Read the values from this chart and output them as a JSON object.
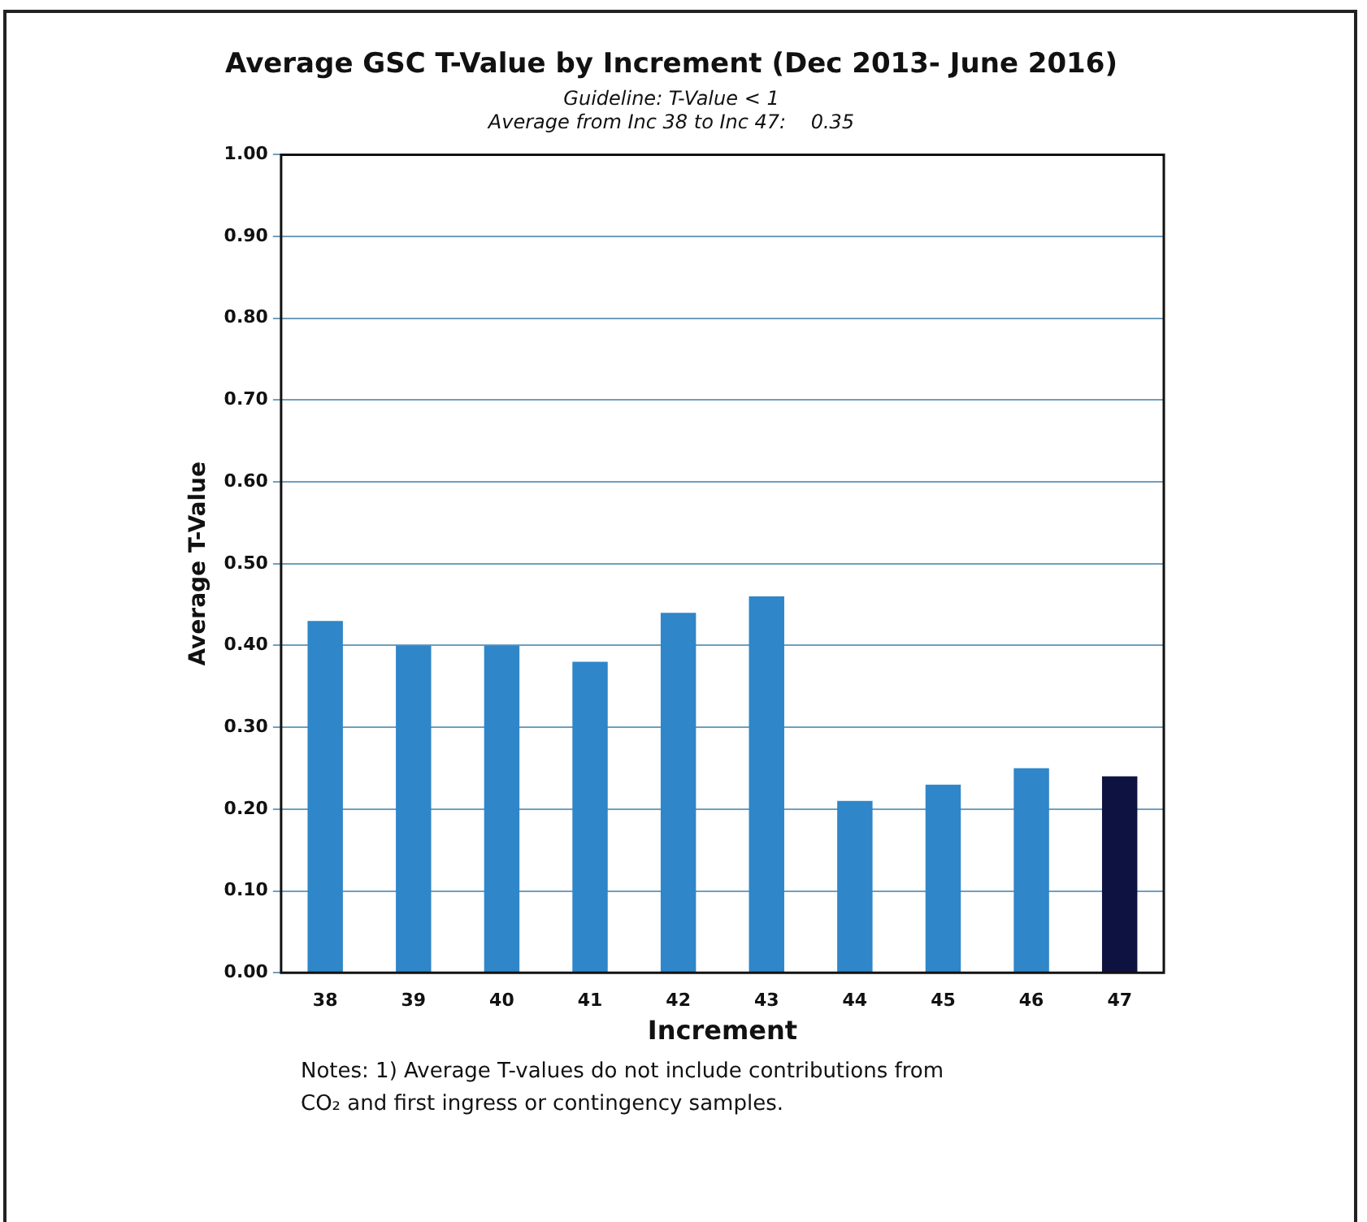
{
  "chart_data": {
    "type": "bar",
    "title": "Average GSC T-Value by Increment (Dec 2013- June 2016)",
    "subtitle": "Guideline: T-Value < 1",
    "annotations": [
      "Average from Inc 38 to Inc 47:    0.35",
      "Notes:  1) Average T-values do not include contributions from CO₂ and first ingress or contingency samples."
    ],
    "xlabel": "Increment",
    "ylabel": "Average T-Value",
    "categories": [
      "38",
      "39",
      "40",
      "41",
      "42",
      "43",
      "44",
      "45",
      "46",
      "47"
    ],
    "values": [
      0.43,
      0.4,
      0.4,
      0.38,
      0.44,
      0.46,
      0.21,
      0.23,
      0.25,
      0.24
    ],
    "colors": [
      "#2f86c8",
      "#2f86c8",
      "#2f86c8",
      "#2f86c8",
      "#2f86c8",
      "#2f86c8",
      "#2f86c8",
      "#2f86c8",
      "#2f86c8",
      "#0e1240"
    ],
    "ylim": [
      0,
      1
    ],
    "yticks": [
      {
        "value": 0,
        "label": "0.00"
      },
      {
        "value": 0.1,
        "label": "0.10"
      },
      {
        "value": 0.2,
        "label": "0.20"
      },
      {
        "value": 0.3,
        "label": "0.30"
      },
      {
        "value": 0.4,
        "label": "0.40"
      },
      {
        "value": 0.5,
        "label": "0.50"
      },
      {
        "value": 0.6,
        "label": "0.60"
      },
      {
        "value": 0.7,
        "label": "0.70"
      },
      {
        "value": 0.8,
        "label": "0.80"
      },
      {
        "value": 0.9,
        "label": "0.90"
      },
      {
        "value": 1,
        "label": "1.00"
      }
    ],
    "grid": "y",
    "legend": false
  }
}
